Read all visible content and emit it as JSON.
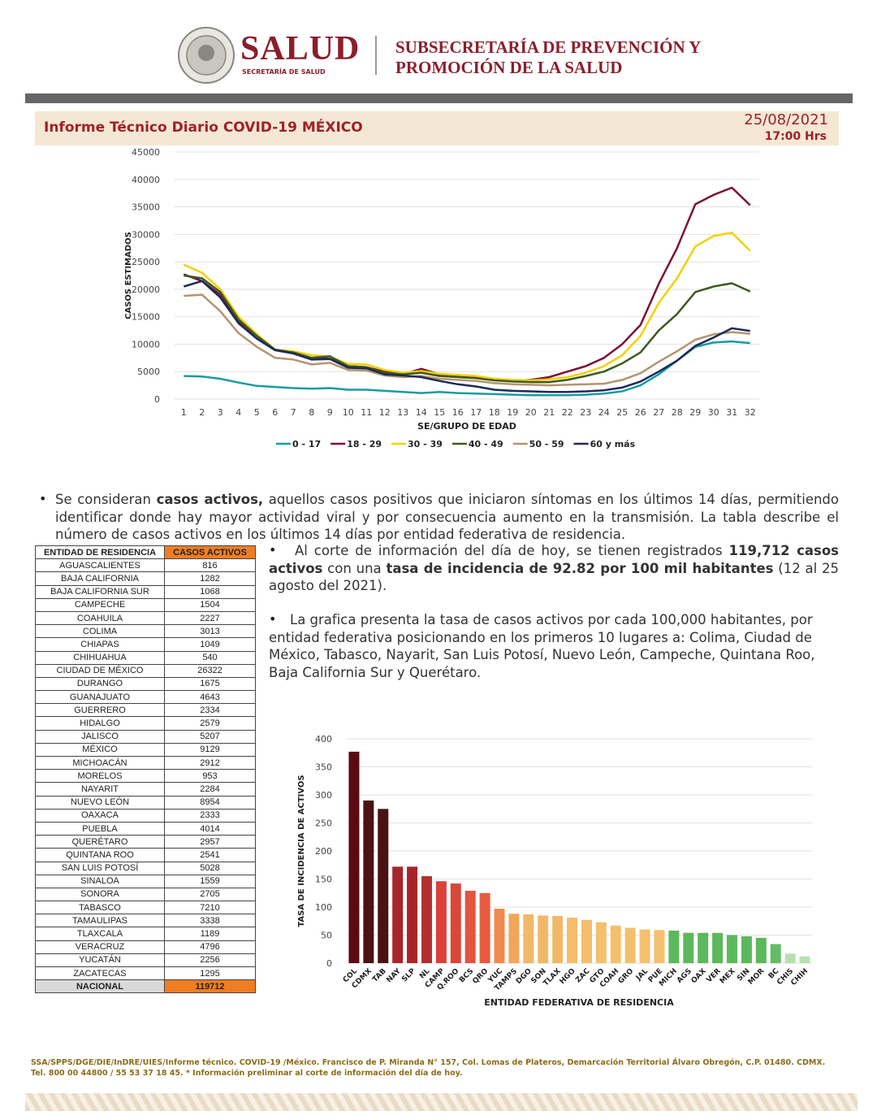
{
  "header": {
    "brand": "SALUD",
    "brand_sub": "SECRETARÍA DE SALUD",
    "title_line1": "SUBSECRETARÍA DE PREVENCIÓN Y",
    "title_line2": "PROMOCIÓN DE LA SALUD"
  },
  "report": {
    "title": "Informe Técnico Diario COVID-19 MÉXICO",
    "date": "25/08/2021",
    "time": "17:00 Hrs"
  },
  "chart_data": [
    {
      "type": "line",
      "xlabel": "SE/GRUPO DE EDAD",
      "ylabel": "CASOS ESTIMADOS",
      "categories": [
        "1",
        "2",
        "3",
        "4",
        "5",
        "6",
        "7",
        "8",
        "9",
        "10",
        "11",
        "12",
        "13",
        "14",
        "15",
        "16",
        "17",
        "18",
        "19",
        "20",
        "21",
        "22",
        "23",
        "24",
        "25",
        "26",
        "27",
        "28",
        "29",
        "30",
        "31",
        "32"
      ],
      "ylim": [
        0,
        45000
      ],
      "yticks": [
        0,
        5000,
        10000,
        15000,
        20000,
        25000,
        30000,
        35000,
        40000,
        45000
      ],
      "grid": true,
      "series": [
        {
          "name": "0 - 17",
          "color": "#1a9ba0",
          "values": [
            4200,
            4100,
            3700,
            3000,
            2400,
            2200,
            2000,
            1900,
            2000,
            1700,
            1700,
            1500,
            1300,
            1100,
            1300,
            1100,
            1000,
            900,
            800,
            700,
            700,
            700,
            800,
            1000,
            1400,
            2500,
            4500,
            7000,
            9500,
            10300,
            10500,
            10200
          ]
        },
        {
          "name": "18 - 29",
          "color": "#7b1035",
          "values": [
            22700,
            21500,
            19000,
            14000,
            11500,
            9000,
            8500,
            7500,
            7500,
            6000,
            5800,
            5000,
            4500,
            5500,
            4500,
            4300,
            4000,
            3500,
            3300,
            3500,
            4000,
            5000,
            6000,
            7500,
            10000,
            13500,
            21000,
            27500,
            35500,
            37200,
            38500,
            35300
          ]
        },
        {
          "name": "30 - 39",
          "color": "#f5d000",
          "values": [
            24500,
            23000,
            20000,
            15000,
            11800,
            9000,
            8700,
            8000,
            7700,
            6400,
            6300,
            5300,
            4800,
            5100,
            4600,
            4400,
            4200,
            3700,
            3500,
            3400,
            3600,
            4000,
            4800,
            6000,
            8000,
            11500,
            17500,
            22000,
            27800,
            29700,
            30300,
            27000
          ]
        },
        {
          "name": "40 - 49",
          "color": "#3d5a1e",
          "values": [
            22500,
            22000,
            19500,
            14500,
            11500,
            9000,
            8500,
            7500,
            7800,
            6000,
            5800,
            4800,
            4500,
            4800,
            4200,
            4000,
            3800,
            3400,
            3200,
            3100,
            3100,
            3500,
            4200,
            5000,
            6500,
            8500,
            12500,
            15500,
            19500,
            20500,
            21100,
            19600
          ]
        },
        {
          "name": "50 - 59",
          "color": "#b59470",
          "values": [
            18800,
            19000,
            16000,
            12000,
            9500,
            7500,
            7200,
            6300,
            6600,
            5300,
            5200,
            4300,
            4000,
            4200,
            3700,
            3500,
            3300,
            2900,
            2700,
            2600,
            2500,
            2600,
            2700,
            2800,
            3500,
            4700,
            6800,
            8700,
            10800,
            11800,
            12200,
            11900
          ]
        },
        {
          "name": "60 y más",
          "color": "#1c2a5a",
          "values": [
            20500,
            21500,
            18500,
            13800,
            11000,
            8900,
            8300,
            7200,
            7300,
            5700,
            5600,
            4500,
            4300,
            4000,
            3300,
            2700,
            2300,
            1700,
            1500,
            1400,
            1300,
            1300,
            1400,
            1600,
            2100,
            3200,
            5000,
            7000,
            9700,
            11200,
            12900,
            12400
          ]
        }
      ]
    },
    {
      "type": "bar",
      "xlabel": "ENTIDAD FEDERATIVA DE RESIDENCIA",
      "ylabel": "TASA DE INCIDENCIA DE ACTIVOS",
      "categories": [
        "COL",
        "CDMX",
        "TAB",
        "NAY",
        "SLP",
        "NL",
        "CAMP",
        "Q.ROO",
        "BCS",
        "QRO",
        "YUC",
        "TAMPS",
        "DGO",
        "SON",
        "TLAX",
        "HGO",
        "ZAC",
        "GTO",
        "COAH",
        "GRO",
        "JAL",
        "PUE",
        "MICH",
        "AGS",
        "OAX",
        "VER",
        "MEX",
        "SIN",
        "MOR",
        "BC",
        "CHIS",
        "CHIH"
      ],
      "values": [
        377,
        290,
        275,
        172,
        172,
        155,
        146,
        142,
        129,
        125,
        97,
        88,
        87,
        85,
        84,
        81,
        77,
        73,
        67,
        63,
        60,
        59,
        58,
        54,
        54,
        54,
        50,
        48,
        45,
        34,
        17,
        12
      ],
      "colors": [
        "#5c0a12",
        "#4a1212",
        "#4a1212",
        "#a8262a",
        "#a8262a",
        "#b2302e",
        "#d9413a",
        "#d9473c",
        "#e2553f",
        "#e85a40",
        "#f08a4e",
        "#f2a65a",
        "#f2b86a",
        "#f2b86a",
        "#f2b86a",
        "#f4be6c",
        "#f4be6c",
        "#f4c06e",
        "#f4c06e",
        "#f4c06e",
        "#f4c06e",
        "#f4c06e",
        "#5cb85c",
        "#5cb85c",
        "#5cb85c",
        "#5cb85c",
        "#5cb85c",
        "#5cb85c",
        "#5cb85c",
        "#66bb66",
        "#b7dfb0",
        "#b7dfb0"
      ],
      "ylim": [
        0,
        400
      ],
      "yticks": [
        0,
        50,
        100,
        150,
        200,
        250,
        300,
        350,
        400
      ],
      "grid": true
    }
  ],
  "text": {
    "p1": [
      "Se consideran ",
      "casos activos,",
      " aquellos casos positivos que iniciaron síntomas en los últimos 14 días, permitiendo identificar donde hay mayor actividad viral y por consecuencia aumento en la transmisión. La tabla describe el número de casos activos en los últimos 14 días por entidad federativa de residencia."
    ],
    "p2": [
      "Al corte de información del día de hoy, se tienen registrados ",
      "119,712 casos activos",
      " con una ",
      "tasa de incidencia de 92.82 por 100 mil habitantes",
      " (12 al 25 agosto del 2021)."
    ],
    "p3": "La grafica presenta la tasa de casos activos por cada 100,000 habitantes, por entidad federativa posicionando en los primeros 10 lugares a: Colima, Ciudad de México, Tabasco, Nayarit, San Luis Potosí, Nuevo León, Campeche, Quintana Roo, Baja California Sur y Querétaro."
  },
  "table": {
    "header": [
      "ENTIDAD DE RESIDENCIA",
      "CASOS ACTIVOS"
    ],
    "rows": [
      [
        "AGUASCALIENTES",
        816
      ],
      [
        "BAJA CALIFORNIA",
        1282
      ],
      [
        "BAJA CALIFORNIA SUR",
        1068
      ],
      [
        "CAMPECHE",
        1504
      ],
      [
        "COAHUILA",
        2227
      ],
      [
        "COLIMA",
        3013
      ],
      [
        "CHIAPAS",
        1049
      ],
      [
        "CHIHUAHUA",
        540
      ],
      [
        "CIUDAD DE MÉXICO",
        26322
      ],
      [
        "DURANGO",
        1675
      ],
      [
        "GUANAJUATO",
        4643
      ],
      [
        "GUERRERO",
        2334
      ],
      [
        "HIDALGO",
        2579
      ],
      [
        "JALISCO",
        5207
      ],
      [
        "MÉXICO",
        9129
      ],
      [
        "MICHOACÁN",
        2912
      ],
      [
        "MORELOS",
        953
      ],
      [
        "NAYARIT",
        2284
      ],
      [
        "NUEVO LEÓN",
        8954
      ],
      [
        "OAXACA",
        2333
      ],
      [
        "PUEBLA",
        4014
      ],
      [
        "QUERÉTARO",
        2957
      ],
      [
        "QUINTANA ROO",
        2541
      ],
      [
        "SAN LUIS POTOSÍ",
        5028
      ],
      [
        "SINALOA",
        1559
      ],
      [
        "SONORA",
        2705
      ],
      [
        "TABASCO",
        7210
      ],
      [
        "TAMAULIPAS",
        3338
      ],
      [
        "TLAXCALA",
        1189
      ],
      [
        "VERACRUZ",
        4796
      ],
      [
        "YUCATÁN",
        2256
      ],
      [
        "ZACATECAS",
        1295
      ]
    ],
    "total": [
      "NACIONAL",
      119712
    ]
  },
  "footer": {
    "line1": "SSA/SPPS/DGE/DIE/InDRE/UIES/Informe técnico. COVID-19 /México. Francisco de P. Miranda N° 157, Col. Lomas de Plateros, Demarcación Territorial Álvaro Obregón, C.P. 01480. CDMX.",
    "line2": "Tel. 800 00 44800 / 55 53 37 18 45. * Información preliminar al corte de información del día de hoy."
  }
}
